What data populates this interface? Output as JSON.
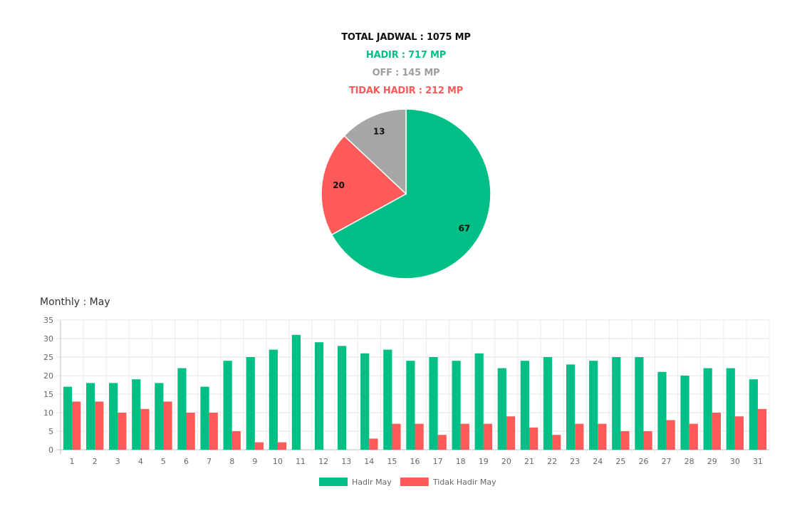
{
  "summary": {
    "total": {
      "text": "TOTAL JADWAL : 1075 MP",
      "color": "#111111"
    },
    "hadir": {
      "text": "HADIR : 717 MP",
      "color": "#00bf86"
    },
    "off": {
      "text": "OFF : 145 MP",
      "color": "#9e9e9e"
    },
    "tidak_hadir": {
      "text": "TIDAK HADIR : 212 MP",
      "color": "#ff5a5a"
    }
  },
  "monthly_title": "Monthly : May",
  "chart_data": [
    {
      "type": "pie",
      "slices": [
        {
          "name": "Hadir",
          "value": 67,
          "label": "67",
          "color": "#00bf86"
        },
        {
          "name": "Tidak Hadir",
          "value": 20,
          "label": "20",
          "color": "#ff5a5a"
        },
        {
          "name": "Off",
          "value": 13,
          "label": "13",
          "color": "#a6a6a6"
        }
      ]
    },
    {
      "type": "bar",
      "title": "Monthly : May",
      "categories": [
        "1",
        "2",
        "3",
        "4",
        "5",
        "6",
        "7",
        "8",
        "9",
        "10",
        "11",
        "12",
        "13",
        "14",
        "15",
        "16",
        "17",
        "18",
        "19",
        "20",
        "21",
        "22",
        "23",
        "24",
        "25",
        "26",
        "27",
        "28",
        "29",
        "30",
        "31"
      ],
      "series": [
        {
          "name": "Hadir May",
          "color": "#00bf86",
          "values": [
            17,
            18,
            18,
            19,
            18,
            22,
            17,
            24,
            25,
            27,
            31,
            29,
            28,
            26,
            27,
            24,
            25,
            24,
            26,
            22,
            24,
            25,
            23,
            24,
            25,
            25,
            21,
            20,
            22,
            22,
            19
          ]
        },
        {
          "name": "Tidak Hadir May",
          "color": "#ff5a5a",
          "values": [
            13,
            13,
            10,
            11,
            13,
            10,
            10,
            5,
            2,
            2,
            0,
            0,
            0,
            3,
            7,
            7,
            4,
            7,
            7,
            9,
            6,
            4,
            7,
            7,
            5,
            5,
            8,
            7,
            10,
            9,
            11
          ]
        }
      ],
      "ylim": [
        0,
        35
      ],
      "yticks": [
        0,
        5,
        10,
        15,
        20,
        25,
        30,
        35
      ],
      "grid": true,
      "legend": "bottom-center"
    }
  ]
}
